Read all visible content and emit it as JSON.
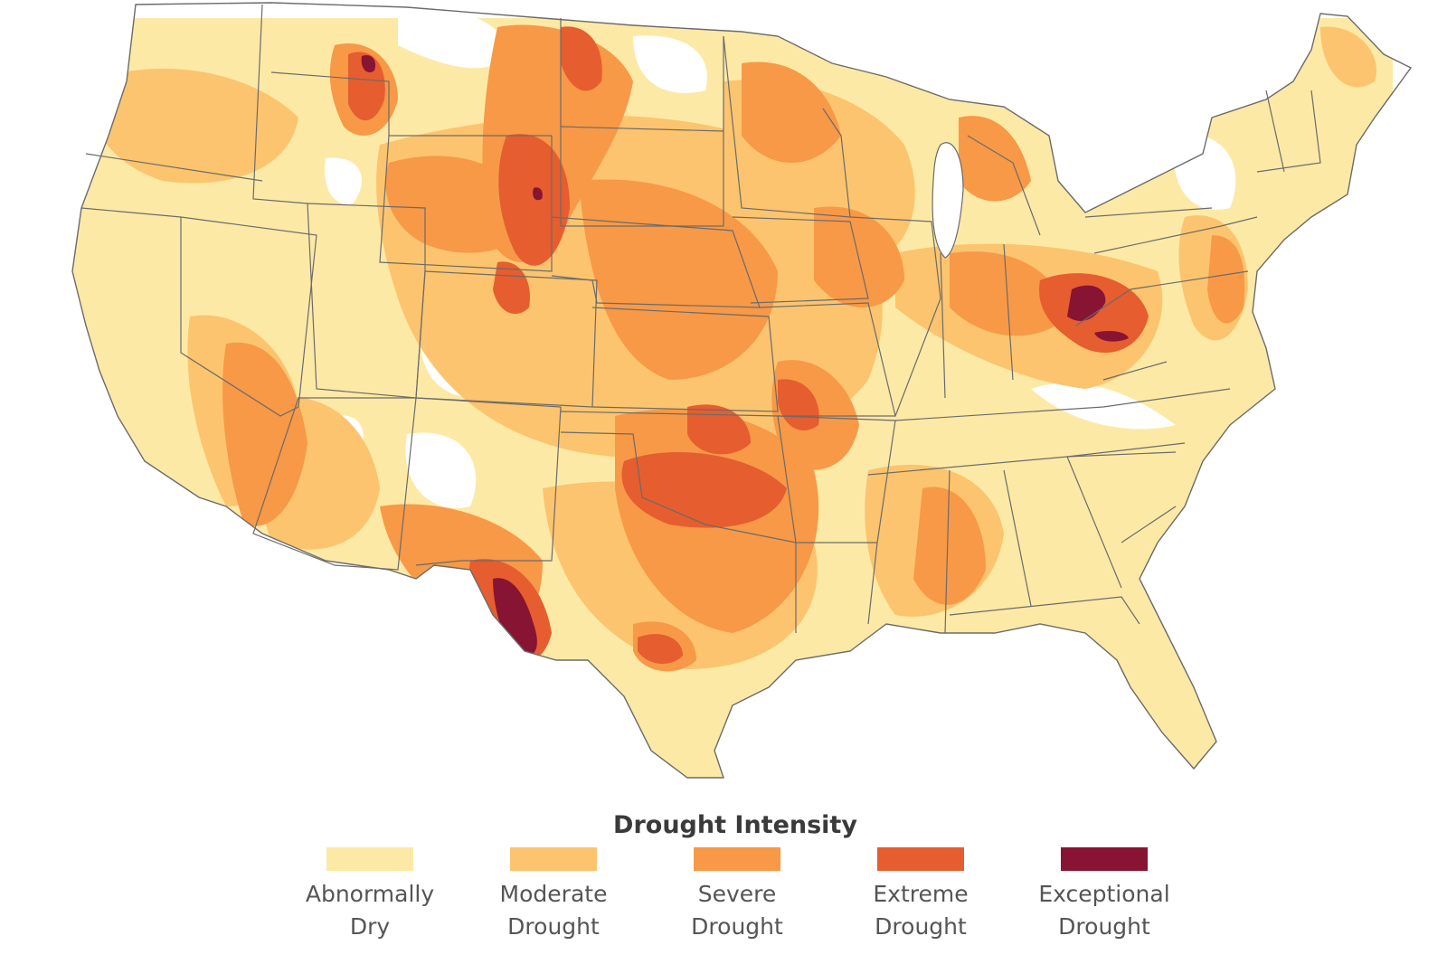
{
  "map": {
    "colors": {
      "land": "#ffffff",
      "abnormally_dry": "#fde9a6",
      "moderate": "#fcc46e",
      "severe": "#f79947",
      "extreme": "#e65d2f",
      "exceptional": "#871433",
      "borders": "#6b6b6b"
    }
  },
  "legend": {
    "title": "Drought Intensity",
    "items": [
      {
        "line1": "Abnormally",
        "line2": "Dry",
        "color": "#fde9a6"
      },
      {
        "line1": "Moderate",
        "line2": "Drought",
        "color": "#fcc46e"
      },
      {
        "line1": "Severe",
        "line2": "Drought",
        "color": "#f79947"
      },
      {
        "line1": "Extreme",
        "line2": "Drought",
        "color": "#e65d2f"
      },
      {
        "line1": "Exceptional",
        "line2": "Drought",
        "color": "#871433"
      }
    ]
  }
}
